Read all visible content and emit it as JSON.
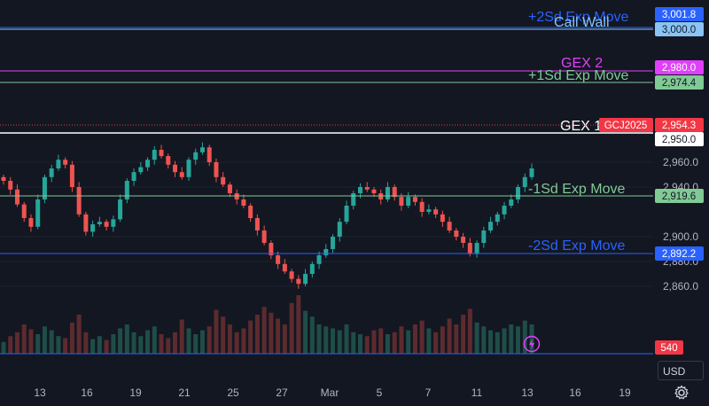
{
  "chart_data": {
    "type": "candlestick",
    "symbol": "GCJ2025",
    "currency": "USD",
    "y_ticks": [
      2860,
      2880,
      2900,
      2940,
      2960
    ],
    "x_ticks": [
      "13",
      "16",
      "19",
      "21",
      "25",
      "27",
      "Mar",
      "5",
      "7",
      "11",
      "13",
      "16",
      "19"
    ],
    "last_price": 2954.3,
    "volume_last": "540",
    "levels": [
      {
        "label": "+2Sd Exp Move",
        "tag": "3,001.8",
        "value": 3001.8,
        "color": "#2962ff"
      },
      {
        "label": "Call Wall",
        "tag": "3,000.0",
        "value": 3000.0,
        "color": "#89c4f4"
      },
      {
        "label": "GEX 2",
        "tag": "2,980.0",
        "value": 2980.0,
        "color": "#e040fb"
      },
      {
        "label": "+1Sd Exp Move",
        "tag": "2,974.4",
        "value": 2974.4,
        "color": "#81c995"
      },
      {
        "label": "GEX 1",
        "tag": "2,950.0",
        "value": 2950.0,
        "color": "#ffffff"
      },
      {
        "label": "-1Sd Exp Move",
        "tag": "2,919.6",
        "value": 2919.6,
        "color": "#81c995"
      },
      {
        "label": "-2Sd Exp Move",
        "tag": "2,892.2",
        "value": 2892.2,
        "color": "#2962ff"
      }
    ],
    "price_tag": {
      "symbol": "GCJ2025",
      "value": "2,954.3",
      "color": "#f23645"
    },
    "close_series": [
      2945,
      2938,
      2926,
      2915,
      2908,
      2930,
      2948,
      2955,
      2962,
      2958,
      2940,
      2918,
      2904,
      2910,
      2912,
      2908,
      2914,
      2930,
      2945,
      2952,
      2956,
      2962,
      2970,
      2965,
      2958,
      2952,
      2948,
      2962,
      2968,
      2972,
      2960,
      2948,
      2942,
      2935,
      2930,
      2925,
      2915,
      2905,
      2895,
      2885,
      2878,
      2872,
      2866,
      2862,
      2870,
      2878,
      2885,
      2890,
      2900,
      2912,
      2925,
      2935,
      2940,
      2938,
      2935,
      2930,
      2940,
      2932,
      2925,
      2932,
      2928,
      2920,
      2922,
      2918,
      2912,
      2905,
      2900,
      2895,
      2886,
      2895,
      2905,
      2912,
      2918,
      2925,
      2930,
      2940,
      2948,
      2955
    ],
    "volume_series": [
      12,
      18,
      22,
      30,
      25,
      20,
      28,
      24,
      18,
      16,
      32,
      40,
      22,
      15,
      18,
      14,
      20,
      26,
      30,
      22,
      18,
      24,
      28,
      20,
      16,
      22,
      35,
      26,
      20,
      24,
      28,
      45,
      38,
      30,
      22,
      26,
      34,
      40,
      48,
      42,
      36,
      30,
      52,
      60,
      44,
      38,
      30,
      28,
      26,
      24,
      30,
      22,
      20,
      18,
      24,
      26,
      20,
      22,
      28,
      24,
      30,
      34,
      26,
      22,
      28,
      36,
      30,
      40,
      46,
      32,
      28,
      24,
      22,
      26,
      30,
      28,
      34,
      30
    ]
  }
}
